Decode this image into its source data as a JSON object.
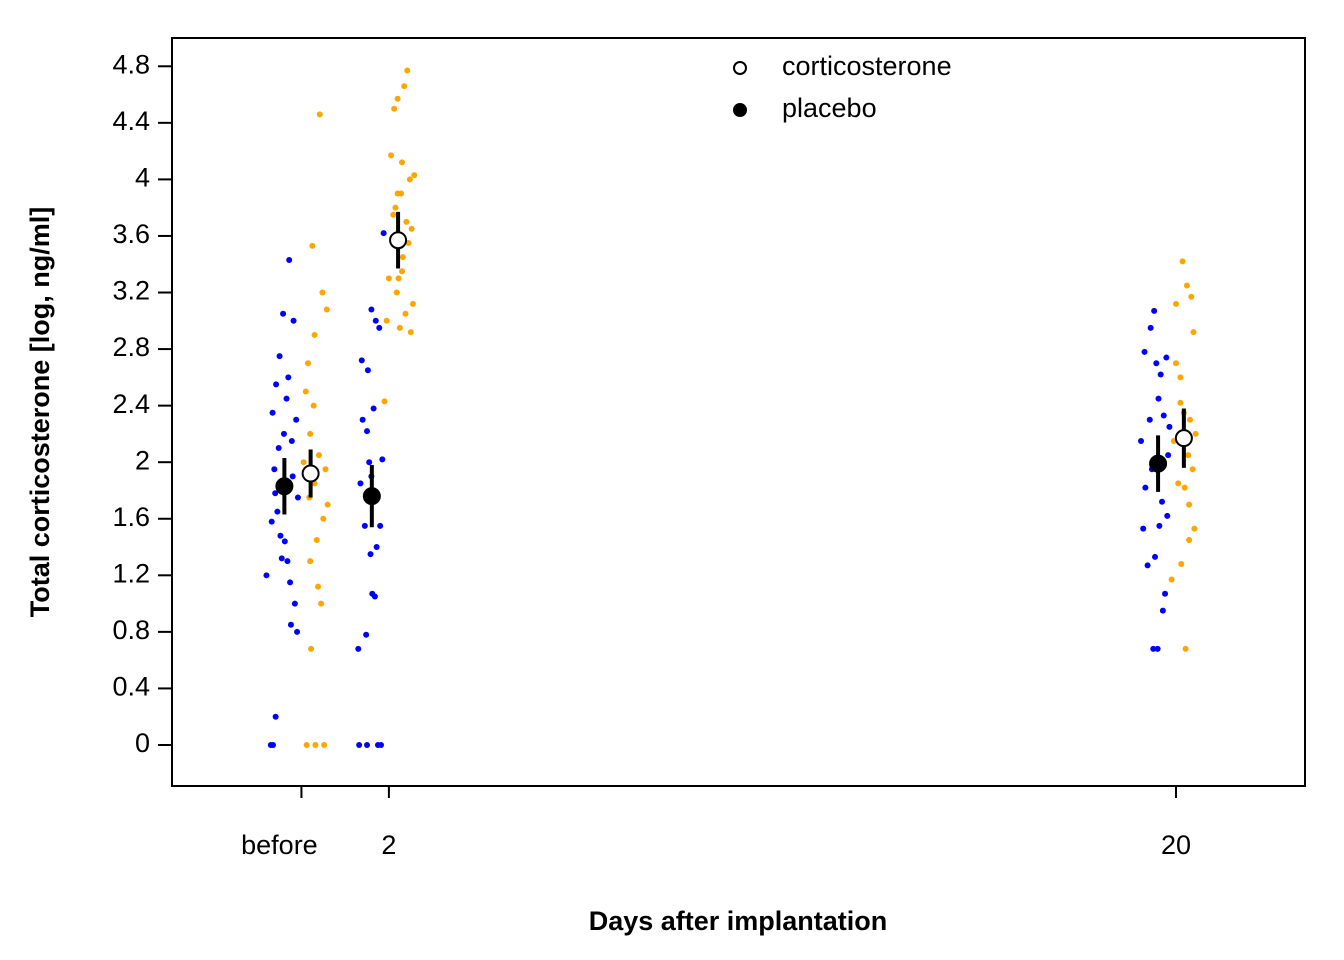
{
  "chart_data": {
    "type": "scatter",
    "xlabel": "Days after implantation",
    "ylabel": "Total corticosterone [log, ng/ml]",
    "xlim": [
      -2.96,
      22.95
    ],
    "ylim": [
      -0.29,
      5.0
    ],
    "xticks": [
      {
        "value": 0,
        "label": "before"
      },
      2,
      20
    ],
    "yticks": [
      0,
      0.4,
      0.8,
      1.2,
      1.6,
      2,
      2.4,
      2.8,
      3.2,
      3.6,
      4,
      4.4,
      4.8
    ],
    "legend": "top",
    "points": [
      {
        "color": "#0000ff",
        "x": [
          -0.8,
          -0.7,
          -0.65,
          -0.68,
          -0.66,
          -0.62,
          -0.6,
          -0.58,
          -0.55,
          -0.52,
          -0.5,
          -0.48,
          -0.45,
          -0.42,
          -0.4,
          -0.38,
          -0.59,
          -0.34,
          -0.32,
          -0.3,
          -0.28,
          -0.26,
          -0.24,
          -0.22,
          -0.2,
          -0.18,
          -0.15,
          -0.12,
          -0.1,
          -0.08,
          1.3,
          1.32,
          1.35,
          1.38,
          1.4,
          1.45,
          1.48,
          1.5,
          1.52,
          1.55,
          1.58,
          1.6,
          1.62,
          1.65,
          1.68,
          1.7,
          1.72,
          1.75,
          1.78,
          1.8,
          1.82,
          1.85,
          1.88,
          1.6,
          1.5,
          19.2,
          19.25,
          19.28,
          19.3,
          19.35,
          19.4,
          19.42,
          19.45,
          19.48,
          19.5,
          19.52,
          19.55,
          19.58,
          19.6,
          19.62,
          19.65,
          19.68,
          19.7,
          19.72,
          19.75,
          19.78,
          19.8,
          19.82,
          19.85
        ],
        "y": [
          1.2,
          0,
          0,
          1.58,
          2.35,
          1.95,
          1.78,
          2.55,
          1.65,
          2.1,
          2.75,
          1.48,
          1.32,
          3.05,
          2.2,
          1.44,
          0.2,
          2.45,
          1.3,
          2.6,
          3.43,
          1.15,
          0.85,
          2.15,
          1.9,
          3.0,
          1.0,
          2.3,
          0.8,
          1.75,
          0.68,
          0,
          1.85,
          2.72,
          2.3,
          1.55,
          0.78,
          0,
          2.65,
          2.0,
          1.35,
          3.08,
          1.07,
          2.38,
          1.05,
          3.0,
          1.4,
          0,
          2.95,
          1.55,
          0,
          2.02,
          3.62,
          1.9,
          2.22,
          2.15,
          1.53,
          2.78,
          1.82,
          1.27,
          2.3,
          2.95,
          1.95,
          0.68,
          3.07,
          1.33,
          2.7,
          0.68,
          2.45,
          1.55,
          2.62,
          1.72,
          0.95,
          2.33,
          1.07,
          2.74,
          1.62,
          2.05,
          2.25
        ]
      },
      {
        "color": "#ffa500",
        "x": [
          0.05,
          0.1,
          0.12,
          0.15,
          0.18,
          0.2,
          0.22,
          0.25,
          0.28,
          0.3,
          0.32,
          0.35,
          0.38,
          0.4,
          0.42,
          0.45,
          0.48,
          0.5,
          0.52,
          0.55,
          0.58,
          0.6,
          0.3,
          0.2,
          1.9,
          1.95,
          2.0,
          2.05,
          2.1,
          2.12,
          2.15,
          2.18,
          2.2,
          2.22,
          2.25,
          2.28,
          2.3,
          2.32,
          2.35,
          2.38,
          2.4,
          2.42,
          2.45,
          2.48,
          2.5,
          2.52,
          2.55,
          2.58,
          2.1,
          2.2,
          2.3,
          19.9,
          19.95,
          20.0,
          20.05,
          20.1,
          20.12,
          20.15,
          20.18,
          20.2,
          20.22,
          20.25,
          20.28,
          20.3,
          20.32,
          20.35,
          20.38,
          20.4,
          20.42,
          20.45,
          20.1,
          20.0,
          20.3
        ],
        "y": [
          2.0,
          2.5,
          0,
          2.7,
          1.75,
          2.2,
          0.68,
          3.53,
          2.4,
          1.85,
          0,
          1.45,
          1.12,
          2.05,
          4.46,
          1.0,
          3.2,
          1.6,
          0,
          1.95,
          3.08,
          1.7,
          2.9,
          1.3,
          2.43,
          3.0,
          3.3,
          4.17,
          3.55,
          4.5,
          3.8,
          3.2,
          4.57,
          3.3,
          2.95,
          3.9,
          4.12,
          3.45,
          4.66,
          3.05,
          3.7,
          4.77,
          3.55,
          4.0,
          2.92,
          3.65,
          3.12,
          4.03,
          3.75,
          3.9,
          3.35,
          1.17,
          2.15,
          3.12,
          1.85,
          2.6,
          1.28,
          3.42,
          2.35,
          1.82,
          0.68,
          3.25,
          2.05,
          1.45,
          2.3,
          3.17,
          1.95,
          2.92,
          1.53,
          2.2,
          2.42,
          2.7,
          1.7
        ]
      }
    ],
    "series": [
      {
        "name": "corticosterone",
        "color": "#ffffff",
        "x": [
          0.21,
          2.21,
          20.18
        ],
        "y": [
          1.92,
          3.57,
          2.17
        ],
        "errors": [
          0.17,
          0.2,
          0.21
        ]
      },
      {
        "name": "placebo",
        "color": "#000000",
        "x": [
          -0.39,
          1.61,
          19.59
        ],
        "y": [
          1.83,
          1.76,
          1.99
        ],
        "errors": [
          0.2,
          0.22,
          0.2
        ]
      }
    ]
  }
}
